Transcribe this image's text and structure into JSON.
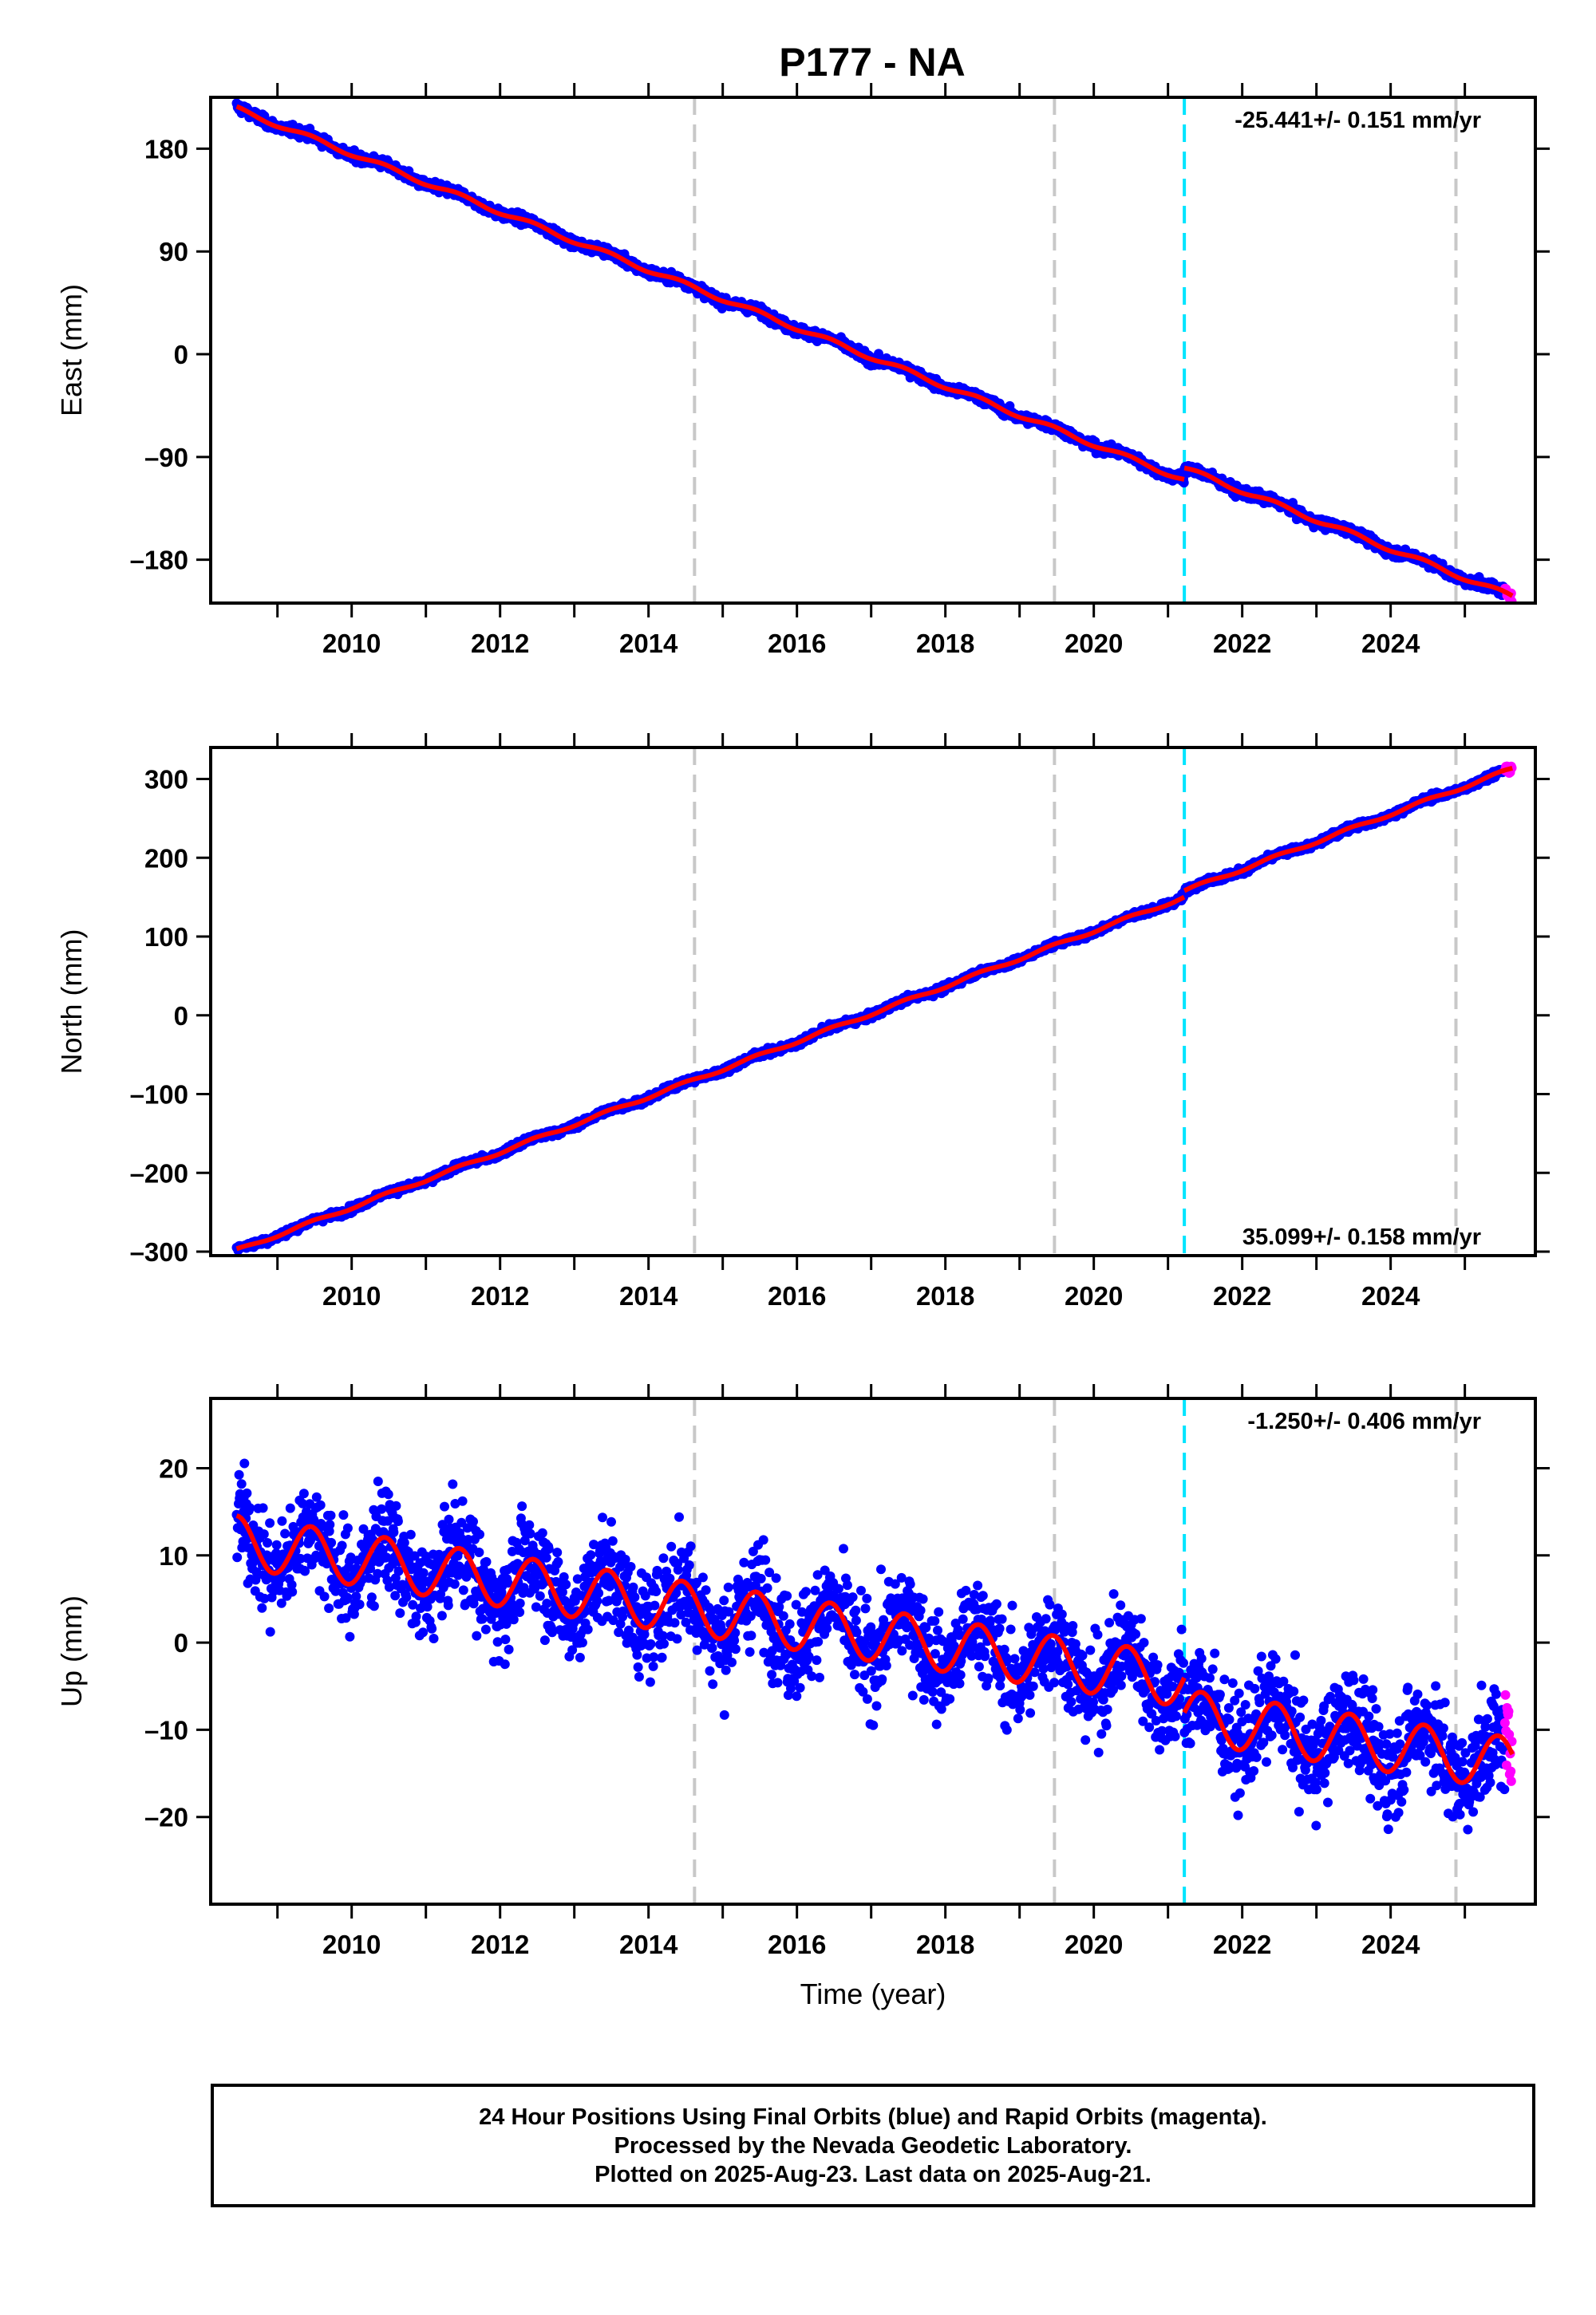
{
  "title": "P177 - NA",
  "chart_data": [
    {
      "type": "scatter",
      "panel": "east",
      "ylabel": "East (mm)",
      "xlabel": "",
      "xlim": [
        2008.1,
        2025.95
      ],
      "ylim": [
        -218,
        225
      ],
      "yticks": [
        -180,
        -90,
        0,
        90,
        180
      ],
      "ytick_labels": [
        "–180",
        "–90",
        "0",
        "90",
        "180"
      ],
      "xticks": [
        2010,
        2012,
        2014,
        2016,
        2018,
        2020,
        2022,
        2024
      ],
      "xtick_labels": [
        "2010",
        "2012",
        "2014",
        "2016",
        "2018",
        "2020",
        "2022",
        "2024"
      ],
      "rate_text": "-25.441+/- 0.151 mm/yr",
      "rate_position": "top-right",
      "equipment_change_lines": [
        2014.62,
        2019.47,
        2024.88
      ],
      "earthquake_lines": [
        2021.22
      ],
      "model": {
        "rate_mm_per_yr": -25.441,
        "reference_year": 2016.9,
        "reference_value": 0,
        "annual_amplitude": 2.0,
        "offset_at_2021_22": 10.0
      },
      "scatter_noise_mm": 3,
      "first_data_year": 2008.45,
      "last_data_year": 2025.64,
      "series": [
        {
          "name": "Final Orbits",
          "color": "#0000ff"
        },
        {
          "name": "Rapid Orbits",
          "color": "#ff00ff"
        },
        {
          "name": "Model",
          "color": "#ff0000"
        }
      ]
    },
    {
      "type": "scatter",
      "panel": "north",
      "ylabel": "North (mm)",
      "xlabel": "",
      "xlim": [
        2008.1,
        2025.95
      ],
      "ylim": [
        -305,
        340
      ],
      "yticks": [
        -300,
        -200,
        -100,
        0,
        100,
        200,
        300
      ],
      "ytick_labels": [
        "–300",
        "–200",
        "–100",
        "0",
        "100",
        "200",
        "300"
      ],
      "xticks": [
        2010,
        2012,
        2014,
        2016,
        2018,
        2020,
        2022,
        2024
      ],
      "xtick_labels": [
        "2010",
        "2012",
        "2014",
        "2016",
        "2018",
        "2020",
        "2022",
        "2024"
      ],
      "rate_text": "35.099+/- 0.158 mm/yr",
      "rate_position": "bottom-right",
      "equipment_change_lines": [
        2014.62,
        2019.47,
        2024.88
      ],
      "earthquake_lines": [
        2021.22
      ],
      "model": {
        "rate_mm_per_yr": 35.099,
        "reference_year": 2016.95,
        "reference_value": 0,
        "annual_amplitude": 2.0,
        "offset_at_2021_22": 8.0
      },
      "scatter_noise_mm": 3,
      "first_data_year": 2008.45,
      "last_data_year": 2025.64,
      "series": [
        {
          "name": "Final Orbits",
          "color": "#0000ff"
        },
        {
          "name": "Rapid Orbits",
          "color": "#ff00ff"
        },
        {
          "name": "Model",
          "color": "#ff0000"
        }
      ]
    },
    {
      "type": "scatter",
      "panel": "up",
      "ylabel": "Up (mm)",
      "xlabel": "Time (year)",
      "xlim": [
        2008.1,
        2025.95
      ],
      "ylim": [
        -30,
        28
      ],
      "yticks": [
        -20,
        -10,
        0,
        10,
        20
      ],
      "ytick_labels": [
        "–20",
        "–10",
        "0",
        "10",
        "20"
      ],
      "xticks": [
        2010,
        2012,
        2014,
        2016,
        2018,
        2020,
        2022,
        2024
      ],
      "xtick_labels": [
        "2010",
        "2012",
        "2014",
        "2016",
        "2018",
        "2020",
        "2022",
        "2024"
      ],
      "rate_text": "-1.250+/- 0.406 mm/yr",
      "rate_position": "top-right",
      "equipment_change_lines": [
        2014.62,
        2019.47,
        2024.88
      ],
      "earthquake_lines": [
        2021.22
      ],
      "model": {
        "rate_mm_per_yr": -1.25,
        "reference_year": 2016.9,
        "reference_value": 1.0,
        "annual_amplitude": 3.0,
        "offset_at_2021_22": -4.0
      },
      "scatter_noise_mm": 4,
      "first_data_year": 2008.45,
      "last_data_year": 2025.64,
      "series": [
        {
          "name": "Final Orbits",
          "color": "#0000ff"
        },
        {
          "name": "Rapid Orbits",
          "color": "#ff00ff"
        },
        {
          "name": "Model",
          "color": "#ff0000"
        }
      ]
    }
  ],
  "footer": {
    "line1": "24 Hour Positions Using Final Orbits (blue) and Rapid Orbits (magenta).",
    "line2": "Processed by the Nevada Geodetic Laboratory.",
    "line3": "Plotted on 2025-Aug-23. Last data on 2025-Aug-21."
  }
}
